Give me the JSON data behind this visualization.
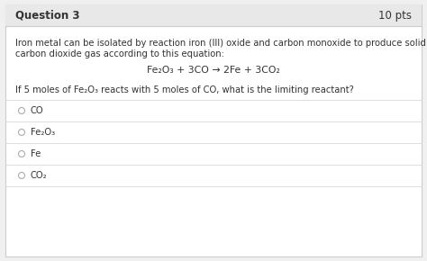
{
  "bg_color": "#f0f0f0",
  "card_bg": "#ffffff",
  "header_bg": "#e8e8e8",
  "header_text": "Question 3",
  "header_pts": "10 pts",
  "header_fontsize": 8.5,
  "body_fontsize": 7.2,
  "equation_fontsize": 7.8,
  "paragraph_line1": "Iron metal can be isolated by reaction iron (III) oxide and carbon monoxide to produce solid iron and",
  "paragraph_line2": "carbon dioxide gas according to this equation:",
  "equation": "Fe₂O₃ + 3CO → 2Fe + 3CO₂",
  "question": "If 5 moles of Fe₂O₃ reacts with 5 moles of CO, what is the limiting reactant?",
  "choices": [
    "CO",
    "Fe₂O₃",
    "Fe",
    "CO₂"
  ],
  "text_color": "#333333",
  "divider_color": "#d8d8d8",
  "border_color": "#cccccc",
  "radio_color": "#aaaaaa"
}
